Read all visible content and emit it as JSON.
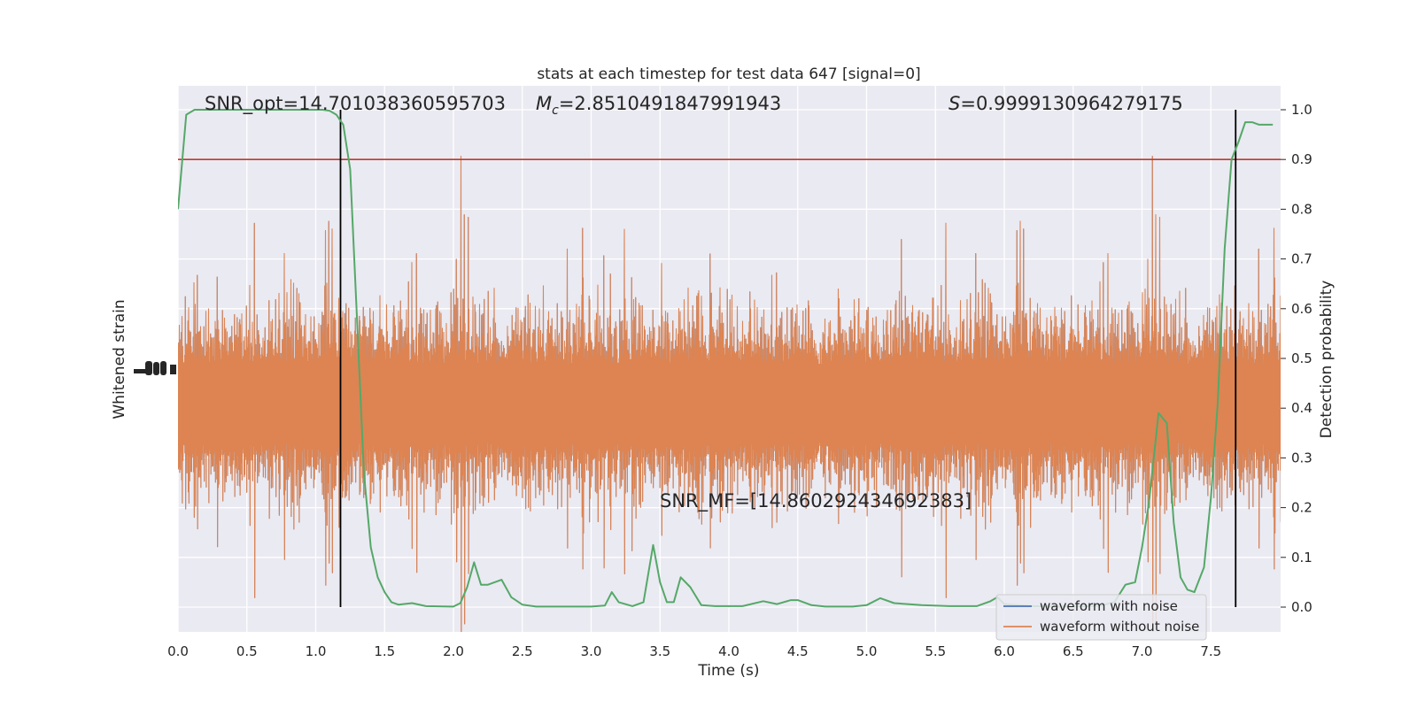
{
  "chart_data": {
    "type": "line",
    "title": "stats at each timestep for test data 647 [signal=0]",
    "xlabel": "Time (s)",
    "ylabel_left": "Whitened strain",
    "ylabel_right": "Detection probability",
    "xlim": [
      0,
      8.0
    ],
    "ylim_right": [
      -0.05,
      1.05
    ],
    "x_ticks": [
      "0.0",
      "0.5",
      "1.0",
      "1.5",
      "2.0",
      "2.5",
      "3.0",
      "3.5",
      "4.0",
      "4.5",
      "5.0",
      "5.5",
      "6.0",
      "6.5",
      "7.0",
      "7.5"
    ],
    "y_ticks_right": [
      "0.0",
      "0.1",
      "0.2",
      "0.3",
      "0.4",
      "0.5",
      "0.6",
      "0.7",
      "0.8",
      "0.9",
      "1.0"
    ],
    "grid": true,
    "legend_position": "bottom-right",
    "annotations": {
      "snr_opt": "SNR_opt=14.701038360595703",
      "mc_symbol": "M",
      "mc_subscript": "c",
      "mc_value": "=2.8510491847991943",
      "s_symbol": "S",
      "s_value": "=0.9999130964279175",
      "snr_mf": "SNR_MF=[14.860292434692383]"
    },
    "threshold": {
      "y": 0.9,
      "color": "#c0392b"
    },
    "vlines": [
      1.18,
      7.68
    ],
    "series": [
      {
        "name": "waveform with noise",
        "color": "#4c72b0"
      },
      {
        "name": "waveform without noise",
        "color": "#dd8452"
      }
    ],
    "probability_color": "#55a868",
    "probability": {
      "x": [
        0.0,
        0.06,
        0.12,
        0.2,
        0.3,
        0.5,
        0.7,
        0.9,
        1.0,
        1.05,
        1.1,
        1.15,
        1.2,
        1.25,
        1.3,
        1.35,
        1.4,
        1.45,
        1.5,
        1.55,
        1.6,
        1.7,
        1.8,
        2.0,
        2.05,
        2.1,
        2.15,
        2.2,
        2.25,
        2.35,
        2.42,
        2.5,
        2.6,
        2.8,
        3.0,
        3.1,
        3.15,
        3.2,
        3.3,
        3.38,
        3.45,
        3.5,
        3.55,
        3.6,
        3.65,
        3.72,
        3.8,
        3.9,
        4.1,
        4.25,
        4.35,
        4.45,
        4.5,
        4.6,
        4.7,
        4.9,
        5.0,
        5.1,
        5.2,
        5.4,
        5.6,
        5.8,
        5.9,
        5.95,
        6.0,
        6.2,
        6.4,
        6.6,
        6.7,
        6.8,
        6.88,
        6.95,
        7.0,
        7.05,
        7.12,
        7.18,
        7.23,
        7.28,
        7.33,
        7.38,
        7.45,
        7.5,
        7.55,
        7.6,
        7.65,
        7.7,
        7.75,
        7.8,
        7.85,
        7.95
      ],
      "y": [
        0.8,
        0.99,
        1.0,
        1.0,
        1.0,
        1.0,
        1.0,
        1.0,
        1.0,
        1.0,
        0.998,
        0.99,
        0.97,
        0.88,
        0.58,
        0.27,
        0.12,
        0.06,
        0.03,
        0.01,
        0.005,
        0.008,
        0.002,
        0.001,
        0.008,
        0.04,
        0.09,
        0.045,
        0.045,
        0.055,
        0.02,
        0.005,
        0.001,
        0.001,
        0.001,
        0.003,
        0.03,
        0.01,
        0.002,
        0.01,
        0.125,
        0.05,
        0.01,
        0.01,
        0.06,
        0.04,
        0.004,
        0.002,
        0.002,
        0.012,
        0.006,
        0.014,
        0.014,
        0.004,
        0.001,
        0.001,
        0.004,
        0.018,
        0.008,
        0.004,
        0.002,
        0.002,
        0.012,
        0.02,
        0.006,
        0.002,
        0.001,
        0.002,
        0.003,
        0.01,
        0.045,
        0.05,
        0.12,
        0.21,
        0.39,
        0.37,
        0.17,
        0.06,
        0.035,
        0.03,
        0.08,
        0.22,
        0.41,
        0.72,
        0.9,
        0.935,
        0.975,
        0.975,
        0.97,
        0.97
      ]
    }
  }
}
